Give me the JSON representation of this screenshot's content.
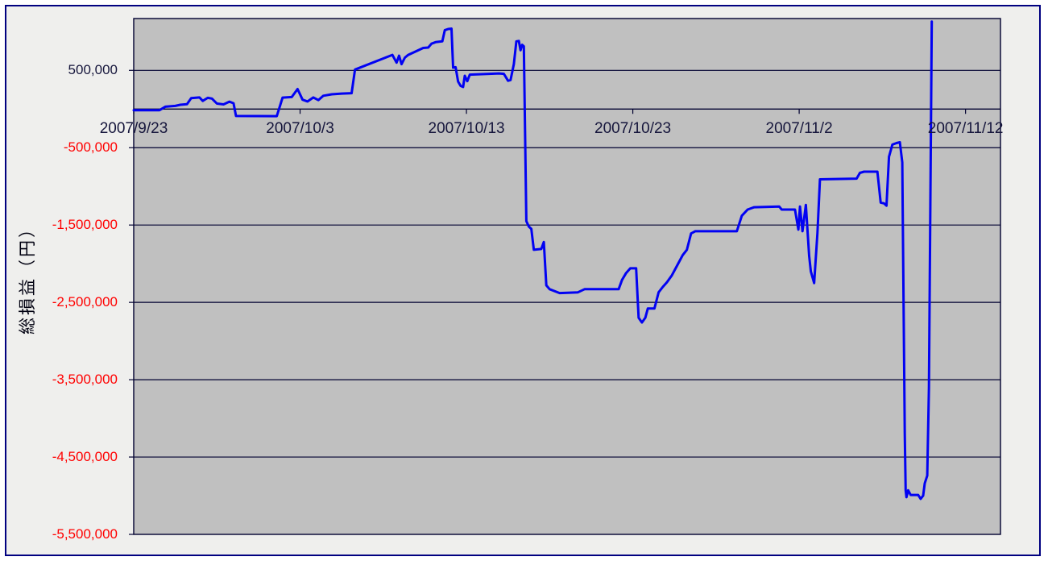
{
  "chart": {
    "frame": {
      "border_color": "#000080",
      "background": "#efefed"
    },
    "plot": {
      "background": "#c0c0c0",
      "grid_color": "#000030",
      "tick_color": "#000030"
    },
    "y_axis": {
      "title": "総損益（円）",
      "title_color": "#000010",
      "label_font_px": 17,
      "ticks": [
        {
          "label": "500,000",
          "value": 500000,
          "color": "#16163c"
        },
        {
          "label": "-500,000",
          "value": -500000,
          "color": "#ff0000"
        },
        {
          "label": "-1,500,000",
          "value": -1500000,
          "color": "#ff0000"
        },
        {
          "label": "-2,500,000",
          "value": -2500000,
          "color": "#ff0000"
        },
        {
          "label": "-3,500,000",
          "value": -3500000,
          "color": "#ff0000"
        },
        {
          "label": "-4,500,000",
          "value": -4500000,
          "color": "#ff0000"
        },
        {
          "label": "-5,500,000",
          "value": -5500000,
          "color": "#ff0000"
        }
      ]
    },
    "x_axis": {
      "label_color": "#16163c",
      "label_font_px": 19,
      "ticks": [
        {
          "label": "2007/9/23",
          "day": 0
        },
        {
          "label": "2007/10/3",
          "day": 10
        },
        {
          "label": "2007/10/13",
          "day": 20
        },
        {
          "label": "2007/10/23",
          "day": 30
        },
        {
          "label": "2007/11/2",
          "day": 40
        },
        {
          "label": "2007/11/12",
          "day": 50
        }
      ]
    }
  },
  "chart_data": {
    "type": "line",
    "title": "",
    "xlabel": "",
    "ylabel": "総損益（円）",
    "x_unit": "days since 2007/9/23",
    "xlim": [
      0,
      52.1
    ],
    "ylim": [
      -5500000,
      1170000
    ],
    "grid": true,
    "grid_values": [
      500000,
      -500000,
      -1500000,
      -2500000,
      -3500000,
      -4500000
    ],
    "legend": "none",
    "series": [
      {
        "name": "総損益",
        "color": "#0202f2",
        "width": 3,
        "points": [
          [
            0,
            -15000
          ],
          [
            1.55,
            -15000
          ],
          [
            1.9,
            30000
          ],
          [
            2.5,
            40000
          ],
          [
            2.8,
            55000
          ],
          [
            3.2,
            62000
          ],
          [
            3.45,
            140000
          ],
          [
            3.95,
            150000
          ],
          [
            4.15,
            105000
          ],
          [
            4.45,
            145000
          ],
          [
            4.7,
            135000
          ],
          [
            5.0,
            70000
          ],
          [
            5.4,
            60000
          ],
          [
            5.75,
            95000
          ],
          [
            6.0,
            75000
          ],
          [
            6.15,
            -90000
          ],
          [
            8.6,
            -92000
          ],
          [
            8.95,
            148000
          ],
          [
            9.5,
            155000
          ],
          [
            9.85,
            258000
          ],
          [
            10.15,
            120000
          ],
          [
            10.45,
            98000
          ],
          [
            10.8,
            150000
          ],
          [
            11.1,
            115000
          ],
          [
            11.4,
            172000
          ],
          [
            11.9,
            190000
          ],
          [
            12.5,
            200000
          ],
          [
            13.1,
            205000
          ],
          [
            13.3,
            510000
          ],
          [
            15.55,
            700000
          ],
          [
            15.8,
            600000
          ],
          [
            15.95,
            690000
          ],
          [
            16.1,
            580000
          ],
          [
            16.3,
            665000
          ],
          [
            16.5,
            700000
          ],
          [
            17.4,
            790000
          ],
          [
            17.7,
            795000
          ],
          [
            17.9,
            845000
          ],
          [
            18.15,
            865000
          ],
          [
            18.55,
            875000
          ],
          [
            18.7,
            1020000
          ],
          [
            18.9,
            1035000
          ],
          [
            19.1,
            1040000
          ],
          [
            19.2,
            535000
          ],
          [
            19.35,
            540000
          ],
          [
            19.5,
            355000
          ],
          [
            19.65,
            300000
          ],
          [
            19.8,
            285000
          ],
          [
            19.9,
            430000
          ],
          [
            20.05,
            360000
          ],
          [
            20.2,
            445000
          ],
          [
            21.95,
            460000
          ],
          [
            22.25,
            455000
          ],
          [
            22.5,
            365000
          ],
          [
            22.65,
            375000
          ],
          [
            22.85,
            580000
          ],
          [
            23.0,
            875000
          ],
          [
            23.15,
            880000
          ],
          [
            23.25,
            760000
          ],
          [
            23.35,
            830000
          ],
          [
            23.45,
            810000
          ],
          [
            23.6,
            -1450000
          ],
          [
            23.75,
            -1520000
          ],
          [
            23.9,
            -1550000
          ],
          [
            24.05,
            -1820000
          ],
          [
            24.5,
            -1810000
          ],
          [
            24.65,
            -1720000
          ],
          [
            24.8,
            -2280000
          ],
          [
            25.0,
            -2330000
          ],
          [
            25.6,
            -2380000
          ],
          [
            26.7,
            -2370000
          ],
          [
            27.1,
            -2330000
          ],
          [
            29.15,
            -2330000
          ],
          [
            29.35,
            -2210000
          ],
          [
            29.6,
            -2120000
          ],
          [
            29.85,
            -2060000
          ],
          [
            30.2,
            -2060000
          ],
          [
            30.35,
            -2700000
          ],
          [
            30.55,
            -2760000
          ],
          [
            30.75,
            -2700000
          ],
          [
            30.9,
            -2580000
          ],
          [
            31.3,
            -2580000
          ],
          [
            31.55,
            -2370000
          ],
          [
            31.8,
            -2300000
          ],
          [
            32.05,
            -2240000
          ],
          [
            32.35,
            -2150000
          ],
          [
            32.65,
            -2030000
          ],
          [
            33.0,
            -1890000
          ],
          [
            33.25,
            -1820000
          ],
          [
            33.5,
            -1610000
          ],
          [
            33.75,
            -1580000
          ],
          [
            36.25,
            -1580000
          ],
          [
            36.55,
            -1380000
          ],
          [
            36.9,
            -1300000
          ],
          [
            37.3,
            -1270000
          ],
          [
            38.8,
            -1260000
          ],
          [
            38.95,
            -1300000
          ],
          [
            39.75,
            -1300000
          ],
          [
            39.95,
            -1560000
          ],
          [
            40.05,
            -1260000
          ],
          [
            40.2,
            -1580000
          ],
          [
            40.4,
            -1240000
          ],
          [
            40.6,
            -1900000
          ],
          [
            40.7,
            -2100000
          ],
          [
            40.9,
            -2250000
          ],
          [
            41.1,
            -1600000
          ],
          [
            41.25,
            -909000
          ],
          [
            43.45,
            -900000
          ],
          [
            43.65,
            -826000
          ],
          [
            43.9,
            -810000
          ],
          [
            44.7,
            -810000
          ],
          [
            44.9,
            -1210000
          ],
          [
            45.1,
            -1220000
          ],
          [
            45.25,
            -1250000
          ],
          [
            45.4,
            -617000
          ],
          [
            45.6,
            -460000
          ],
          [
            45.85,
            -440000
          ],
          [
            46.05,
            -430000
          ],
          [
            46.2,
            -690000
          ],
          [
            46.35,
            -4200000
          ],
          [
            46.4,
            -4930000
          ],
          [
            46.45,
            -5020000
          ],
          [
            46.55,
            -4930000
          ],
          [
            46.7,
            -4990000
          ],
          [
            47.15,
            -4990000
          ],
          [
            47.3,
            -5040000
          ],
          [
            47.45,
            -5000000
          ],
          [
            47.55,
            -4840000
          ],
          [
            47.7,
            -4740000
          ],
          [
            47.8,
            -3600000
          ],
          [
            47.97,
            1130000
          ]
        ]
      }
    ]
  }
}
